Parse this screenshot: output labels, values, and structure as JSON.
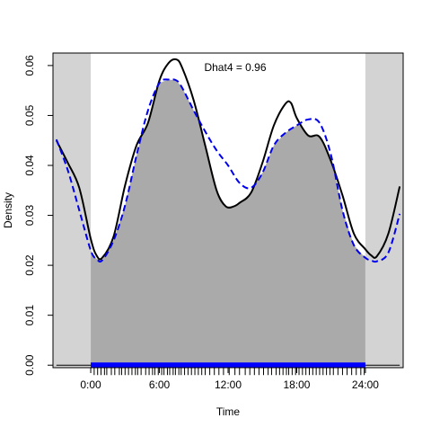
{
  "chart_data": {
    "type": "line",
    "title": "",
    "xlabel": "Time",
    "ylabel": "Density",
    "annotation": "Dhat4 = 0.96",
    "xlim": [
      -3.3,
      27.3
    ],
    "ylim": [
      -0.0005,
      0.0625
    ],
    "x_ticks": [
      {
        "value": 0,
        "label": "0:00"
      },
      {
        "value": 6,
        "label": "6:00"
      },
      {
        "value": 12,
        "label": "12:00"
      },
      {
        "value": 18,
        "label": "18:00"
      },
      {
        "value": 24,
        "label": "24:00"
      }
    ],
    "y_ticks": [
      {
        "value": 0.0,
        "label": "0.00"
      },
      {
        "value": 0.01,
        "label": "0.01"
      },
      {
        "value": 0.02,
        "label": "0.02"
      },
      {
        "value": 0.03,
        "label": "0.03"
      },
      {
        "value": 0.04,
        "label": "0.04"
      },
      {
        "value": 0.05,
        "label": "0.05"
      },
      {
        "value": 0.06,
        "label": "0.06"
      }
    ],
    "shaded_outside_range": [
      0,
      24
    ],
    "overlap_fill_color": "#aaaaaa",
    "outside_fill_color": "#d3d3d3",
    "series": [
      {
        "color": "#000000",
        "style": "solid",
        "x": [
          -3,
          -2,
          -1,
          0,
          0.5,
          1,
          2,
          3,
          4,
          5,
          6,
          6.8,
          7.5,
          8,
          9,
          10,
          11,
          11.8,
          12.5,
          13,
          14,
          15,
          16,
          17,
          17.5,
          18,
          19,
          20,
          21,
          22,
          23,
          24,
          24.5,
          25,
          26,
          27
        ],
        "y": [
          0.045,
          0.0405,
          0.0355,
          0.0253,
          0.022,
          0.0215,
          0.0258,
          0.036,
          0.044,
          0.0485,
          0.057,
          0.0605,
          0.0612,
          0.0595,
          0.053,
          0.044,
          0.035,
          0.0318,
          0.0318,
          0.0325,
          0.0345,
          0.0405,
          0.048,
          0.0523,
          0.0525,
          0.0495,
          0.046,
          0.0457,
          0.0408,
          0.034,
          0.0263,
          0.0232,
          0.022,
          0.0218,
          0.0263,
          0.0358
        ]
      },
      {
        "color": "#0000ee",
        "style": "dashed",
        "x": [
          -3,
          -2,
          -1,
          0,
          0.5,
          1,
          2,
          3,
          4,
          5,
          6,
          6.8,
          7.5,
          8,
          9,
          10,
          11,
          12,
          13,
          14,
          15,
          16,
          17,
          18,
          19,
          20,
          21,
          22,
          23,
          24,
          24.5,
          25,
          26,
          27
        ],
        "y": [
          0.0452,
          0.039,
          0.031,
          0.023,
          0.0213,
          0.021,
          0.025,
          0.032,
          0.042,
          0.051,
          0.0565,
          0.0572,
          0.057,
          0.0555,
          0.051,
          0.0468,
          0.043,
          0.04,
          0.0365,
          0.0355,
          0.0385,
          0.044,
          0.0465,
          0.048,
          0.0492,
          0.0485,
          0.042,
          0.031,
          0.024,
          0.0215,
          0.021,
          0.0208,
          0.0225,
          0.0303
        ]
      }
    ],
    "rug": {
      "top_color": "#0000ff",
      "bottom_color": "#000000",
      "x": [
        0.3,
        0.6,
        0.9,
        1.2,
        1.4,
        1.8,
        2.1,
        2.5,
        2.7,
        3.0,
        3.3,
        3.6,
        3.9,
        4.1,
        4.4,
        4.8,
        5.1,
        5.4,
        5.6,
        5.9,
        6.2,
        6.4,
        6.7,
        6.9,
        7.2,
        7.4,
        7.7,
        7.9,
        8.2,
        8.5,
        8.8,
        9.1,
        9.4,
        9.7,
        10.0,
        10.4,
        10.8,
        11.2,
        11.6,
        12.1,
        12.6,
        13.0,
        13.5,
        13.9,
        14.3,
        14.7,
        15.1,
        15.5,
        15.8,
        16.2,
        16.5,
        16.8,
        17.1,
        17.3,
        17.6,
        17.9,
        18.2,
        18.5,
        18.8,
        19.1,
        19.4,
        19.7,
        20.0,
        20.3,
        20.6,
        20.9,
        21.2,
        21.6,
        22.0,
        22.4,
        22.8,
        23.2,
        23.6,
        23.9
      ]
    }
  }
}
